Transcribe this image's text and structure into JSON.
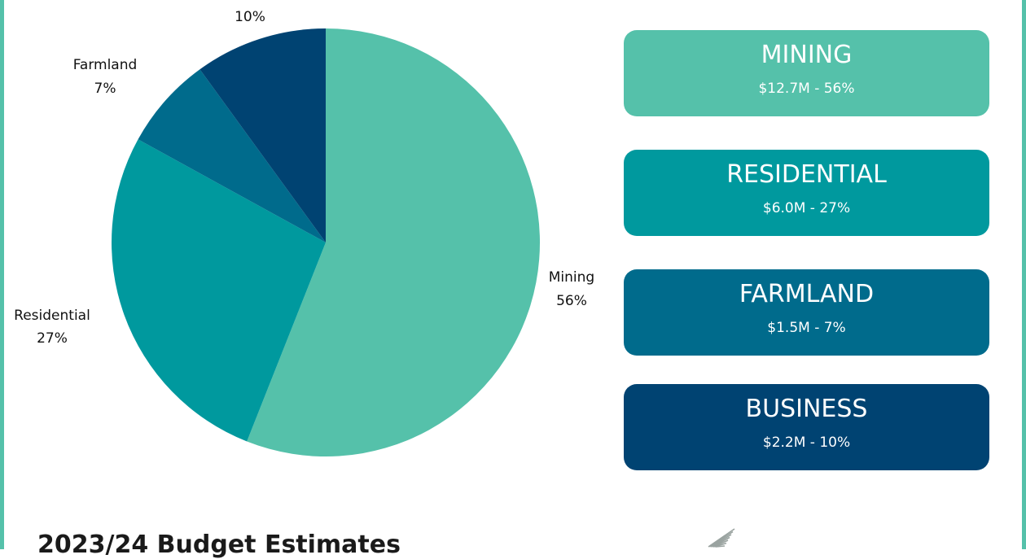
{
  "chart_data": {
    "type": "pie",
    "slices": [
      {
        "name": "Mining",
        "value": 56,
        "label_name": "Mining",
        "label_pct": "56%",
        "color": "#55c1aa"
      },
      {
        "name": "Residential",
        "value": 27,
        "label_name": "Residential",
        "label_pct": "27%",
        "color": "#00999e"
      },
      {
        "name": "Farmland",
        "value": 7,
        "label_name": "Farmland",
        "label_pct": "7%",
        "color": "#006b8c"
      },
      {
        "name": "Business",
        "value": 10,
        "label_name": "",
        "label_pct": "10%",
        "color": "#004372"
      }
    ]
  },
  "cards": [
    {
      "title": "MINING",
      "value": "$12.7M - 56%",
      "color": "#55c1aa"
    },
    {
      "title": "RESIDENTIAL",
      "value": "$6.0M - 27%",
      "color": "#00999e"
    },
    {
      "title": "FARMLAND",
      "value": "$1.5M - 7%",
      "color": "#006b8c"
    },
    {
      "title": "BUSINESS",
      "value": "$2.2M - 10%",
      "color": "#004372"
    }
  ],
  "footer": {
    "title": "2023/24 Budget Estimates"
  },
  "colors": {
    "border": "#55c1aa",
    "logo": "#9aa3a0"
  }
}
